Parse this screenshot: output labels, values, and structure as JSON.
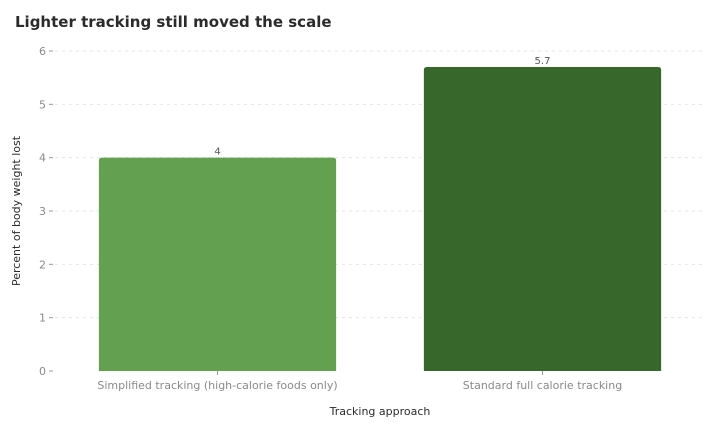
{
  "chart_data": {
    "type": "bar",
    "title": "Lighter tracking still moved the scale",
    "xlabel": "Tracking approach",
    "ylabel": "Percent of body weight lost",
    "categories": [
      "Simplified tracking (high-calorie foods only)",
      "Standard full calorie tracking"
    ],
    "values": [
      4,
      5.7
    ],
    "value_labels": [
      "4",
      "5.7"
    ],
    "colors": [
      "#63a04f",
      "#38672b"
    ],
    "ylim": [
      0,
      6
    ],
    "yticks": [
      0,
      1,
      2,
      3,
      4,
      5,
      6
    ],
    "grid": true,
    "legend": "none"
  }
}
